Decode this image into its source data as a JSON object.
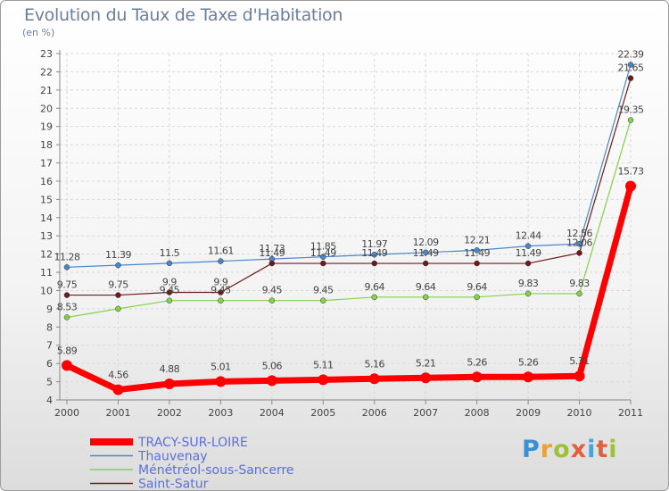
{
  "title": "Evolution du Taux de Taxe d'Habitation",
  "unit_label": "(en %)",
  "logo_text": "Proxiti",
  "chart_data": {
    "type": "line",
    "title": "Evolution du Taux de Taxe d'Habitation",
    "ylabel": "(en %)",
    "x": [
      "2000",
      "2001",
      "2002",
      "2003",
      "2004",
      "2005",
      "2006",
      "2007",
      "2008",
      "2009",
      "2010",
      "2011"
    ],
    "ylim": [
      4,
      23
    ],
    "yticks": [
      4,
      5,
      6,
      7,
      8,
      9,
      10,
      11,
      12,
      13,
      14,
      15,
      16,
      17,
      18,
      19,
      20,
      21,
      22,
      23
    ],
    "grid": true,
    "legend": "bottom-left",
    "series": [
      {
        "name": "TRACY-SUR-LOIRE",
        "color": "#ff0000",
        "values": [
          5.89,
          4.56,
          4.88,
          5.01,
          5.06,
          5.11,
          5.16,
          5.21,
          5.26,
          5.26,
          5.31,
          15.73
        ],
        "labels": [
          "5.89",
          "4.56",
          "4.88",
          "5.01",
          "5.06",
          "5.11",
          "5.16",
          "5.21",
          "5.26",
          "5.26",
          "5.31",
          "15.73"
        ]
      },
      {
        "name": "Thauvenay",
        "color": "#4a86c8",
        "values": [
          11.28,
          11.39,
          11.5,
          11.61,
          11.73,
          11.85,
          11.97,
          12.09,
          12.21,
          12.44,
          12.56,
          22.39
        ],
        "labels": [
          "11.28",
          "11.39",
          "11.5",
          "11.61",
          "11.73",
          "11.85",
          "11.97",
          "12.09",
          "12.21",
          "12.44",
          "12.56",
          "22.39"
        ]
      },
      {
        "name": "Ménétréol-sous-Sancerre",
        "color": "#84d24a",
        "values": [
          8.53,
          9.0,
          9.45,
          9.45,
          9.45,
          9.45,
          9.64,
          9.64,
          9.64,
          9.83,
          9.83,
          19.35
        ],
        "labels": [
          "8.53",
          "",
          "9.45",
          "9.45",
          "9.45",
          "9.45",
          "9.64",
          "9.64",
          "9.64",
          "9.83",
          "9.83",
          "19.35"
        ]
      },
      {
        "name": "Saint-Satur",
        "color": "#6e1a1a",
        "values": [
          9.75,
          9.75,
          9.9,
          9.9,
          11.49,
          11.49,
          11.49,
          11.49,
          11.49,
          11.49,
          12.06,
          21.65
        ],
        "labels": [
          "9.75",
          "9.75",
          "9.9",
          "9.9",
          "11.49",
          "11.49",
          "11.49",
          "11.49",
          "11.49",
          "11.49",
          "12.06",
          "21.65"
        ]
      }
    ]
  }
}
